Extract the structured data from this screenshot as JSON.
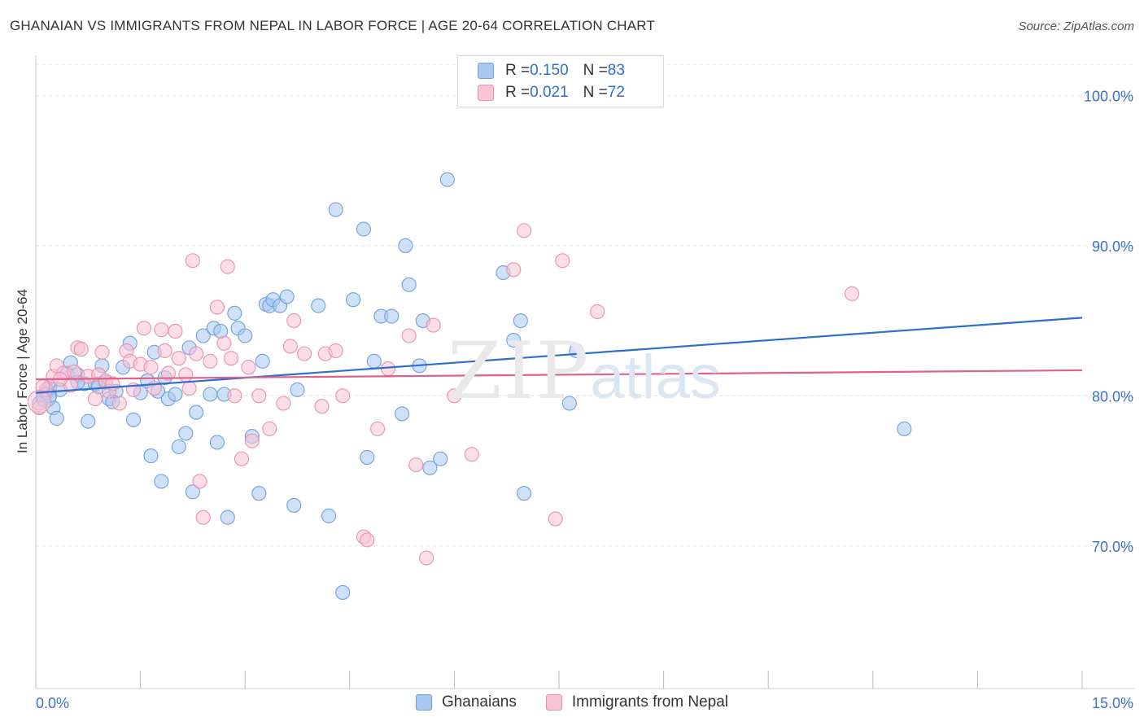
{
  "title": "GHANAIAN VS IMMIGRANTS FROM NEPAL IN LABOR FORCE | AGE 20-64 CORRELATION CHART",
  "source": "Source: ZipAtlas.com",
  "watermark": {
    "zip": "ZIP",
    "atlas": "atlas"
  },
  "legend": {
    "rows": [
      {
        "r_label": "R = ",
        "r_value": "0.150",
        "n_label": "N = ",
        "n_value": "83"
      },
      {
        "r_label": "R = ",
        "r_value": "0.021",
        "n_label": "N = ",
        "n_value": "72"
      }
    ]
  },
  "colors": {
    "blue_fill": "#a8c8f0",
    "blue_stroke": "#6f9fe0",
    "blue_line": "#2e6fcc",
    "pink_fill": "#f8c3d4",
    "pink_stroke": "#ec8fae",
    "pink_line": "#e0608c",
    "grid": "#e3e3e3",
    "tick_label": "#3a72c9"
  },
  "chart_data": {
    "type": "scatter",
    "xlabel": "",
    "ylabel": "In Labor Force | Age 20-64",
    "xlim": [
      0,
      15
    ],
    "ylim": [
      60.5,
      103
    ],
    "x_ticks": [
      0,
      15
    ],
    "x_tick_labels": [
      "0.0%",
      "15.0%"
    ],
    "y_ticks": [
      70,
      80,
      90,
      100
    ],
    "y_tick_labels": [
      "70.0%",
      "80.0%",
      "90.0%",
      "100.0%"
    ],
    "legend_position": "top-center",
    "grid": true,
    "series": [
      {
        "name": "Ghanaians",
        "color": "#a8c8f0",
        "trend": {
          "x": [
            0,
            15
          ],
          "y": [
            80.2,
            85.2
          ]
        },
        "points": [
          [
            0.1,
            79.8
          ],
          [
            0.15,
            80.2
          ],
          [
            0.2,
            80.6
          ],
          [
            0.25,
            79.2
          ],
          [
            0.3,
            78.5
          ],
          [
            0.35,
            80.4
          ],
          [
            0.45,
            81.5
          ],
          [
            0.5,
            82.2
          ],
          [
            0.6,
            81.4
          ],
          [
            0.7,
            80.8
          ],
          [
            0.75,
            78.3
          ],
          [
            0.85,
            80.8
          ],
          [
            0.95,
            82.0
          ],
          [
            1.0,
            80.9
          ],
          [
            1.05,
            79.8
          ],
          [
            1.15,
            80.3
          ],
          [
            1.25,
            81.9
          ],
          [
            1.35,
            83.5
          ],
          [
            1.4,
            78.4
          ],
          [
            1.5,
            80.2
          ],
          [
            1.6,
            81.0
          ],
          [
            1.65,
            76.0
          ],
          [
            1.7,
            82.9
          ],
          [
            1.75,
            80.3
          ],
          [
            1.8,
            74.3
          ],
          [
            1.85,
            81.2
          ],
          [
            1.9,
            79.8
          ],
          [
            2.0,
            80.1
          ],
          [
            2.05,
            76.6
          ],
          [
            2.15,
            77.5
          ],
          [
            2.2,
            83.2
          ],
          [
            2.25,
            73.6
          ],
          [
            2.3,
            78.9
          ],
          [
            2.4,
            84.0
          ],
          [
            2.5,
            80.1
          ],
          [
            2.55,
            84.5
          ],
          [
            2.6,
            76.9
          ],
          [
            2.65,
            84.3
          ],
          [
            2.7,
            80.1
          ],
          [
            2.75,
            71.9
          ],
          [
            2.85,
            85.5
          ],
          [
            2.9,
            84.5
          ],
          [
            3.0,
            84.0
          ],
          [
            3.1,
            77.3
          ],
          [
            3.2,
            73.5
          ],
          [
            3.25,
            82.3
          ],
          [
            3.3,
            86.1
          ],
          [
            3.35,
            86.0
          ],
          [
            3.4,
            86.4
          ],
          [
            3.5,
            86.0
          ],
          [
            3.6,
            86.6
          ],
          [
            3.7,
            72.7
          ],
          [
            3.75,
            80.4
          ],
          [
            4.05,
            86.0
          ],
          [
            4.2,
            72.0
          ],
          [
            4.3,
            92.4
          ],
          [
            4.4,
            66.9
          ],
          [
            4.55,
            86.4
          ],
          [
            4.7,
            91.1
          ],
          [
            4.75,
            75.9
          ],
          [
            4.85,
            82.3
          ],
          [
            4.95,
            85.3
          ],
          [
            5.1,
            85.3
          ],
          [
            5.25,
            78.8
          ],
          [
            5.3,
            90.0
          ],
          [
            5.35,
            87.4
          ],
          [
            5.5,
            82.0
          ],
          [
            5.55,
            85.0
          ],
          [
            5.65,
            75.2
          ],
          [
            5.8,
            75.8
          ],
          [
            5.9,
            94.4
          ],
          [
            6.7,
            88.2
          ],
          [
            6.85,
            83.7
          ],
          [
            6.95,
            85.0
          ],
          [
            7.0,
            73.5
          ],
          [
            7.65,
            79.5
          ],
          [
            7.75,
            83.0
          ],
          [
            12.45,
            77.8
          ],
          [
            0.05,
            79.5
          ],
          [
            0.2,
            80.0
          ],
          [
            1.1,
            79.6
          ],
          [
            0.6,
            80.9
          ],
          [
            0.9,
            80.6
          ]
        ]
      },
      {
        "name": "Immigrants from Nepal",
        "color": "#f8c3d4",
        "trend": {
          "x": [
            0,
            15
          ],
          "y": [
            81.1,
            81.7
          ]
        },
        "points": [
          [
            0.05,
            79.2
          ],
          [
            0.15,
            80.4
          ],
          [
            0.25,
            81.3
          ],
          [
            0.3,
            82.0
          ],
          [
            0.4,
            81.5
          ],
          [
            0.5,
            80.7
          ],
          [
            0.55,
            81.6
          ],
          [
            0.6,
            83.2
          ],
          [
            0.65,
            83.1
          ],
          [
            0.75,
            81.3
          ],
          [
            0.85,
            79.8
          ],
          [
            0.9,
            81.4
          ],
          [
            0.95,
            82.9
          ],
          [
            1.0,
            81.0
          ],
          [
            1.05,
            80.3
          ],
          [
            1.1,
            80.8
          ],
          [
            1.2,
            79.5
          ],
          [
            1.3,
            83.0
          ],
          [
            1.35,
            82.3
          ],
          [
            1.4,
            80.4
          ],
          [
            1.5,
            82.1
          ],
          [
            1.55,
            84.5
          ],
          [
            1.65,
            81.9
          ],
          [
            1.7,
            80.5
          ],
          [
            1.8,
            84.4
          ],
          [
            1.85,
            83.0
          ],
          [
            1.9,
            81.5
          ],
          [
            2.0,
            84.3
          ],
          [
            2.05,
            82.5
          ],
          [
            2.15,
            81.4
          ],
          [
            2.2,
            80.5
          ],
          [
            2.25,
            89.0
          ],
          [
            2.3,
            82.8
          ],
          [
            2.35,
            74.3
          ],
          [
            2.4,
            71.9
          ],
          [
            2.5,
            82.3
          ],
          [
            2.6,
            85.9
          ],
          [
            2.7,
            83.5
          ],
          [
            2.75,
            88.6
          ],
          [
            2.8,
            82.5
          ],
          [
            2.85,
            80.0
          ],
          [
            2.95,
            75.8
          ],
          [
            3.05,
            81.9
          ],
          [
            3.1,
            77.0
          ],
          [
            3.2,
            80.0
          ],
          [
            3.35,
            77.8
          ],
          [
            3.55,
            79.5
          ],
          [
            3.65,
            83.3
          ],
          [
            3.7,
            85.0
          ],
          [
            3.85,
            82.8
          ],
          [
            4.1,
            79.3
          ],
          [
            4.15,
            82.8
          ],
          [
            4.3,
            83.0
          ],
          [
            4.4,
            80.0
          ],
          [
            4.7,
            70.6
          ],
          [
            4.75,
            70.4
          ],
          [
            4.9,
            77.8
          ],
          [
            5.05,
            81.8
          ],
          [
            5.35,
            84.0
          ],
          [
            5.45,
            75.4
          ],
          [
            5.6,
            69.2
          ],
          [
            5.7,
            84.7
          ],
          [
            6.0,
            80.0
          ],
          [
            6.25,
            76.1
          ],
          [
            6.85,
            88.4
          ],
          [
            7.0,
            91.0
          ],
          [
            7.45,
            71.8
          ],
          [
            7.55,
            89.0
          ],
          [
            8.05,
            85.6
          ],
          [
            11.7,
            86.8
          ],
          [
            0.35,
            81.1
          ],
          [
            0.1,
            80.6
          ]
        ]
      }
    ]
  }
}
